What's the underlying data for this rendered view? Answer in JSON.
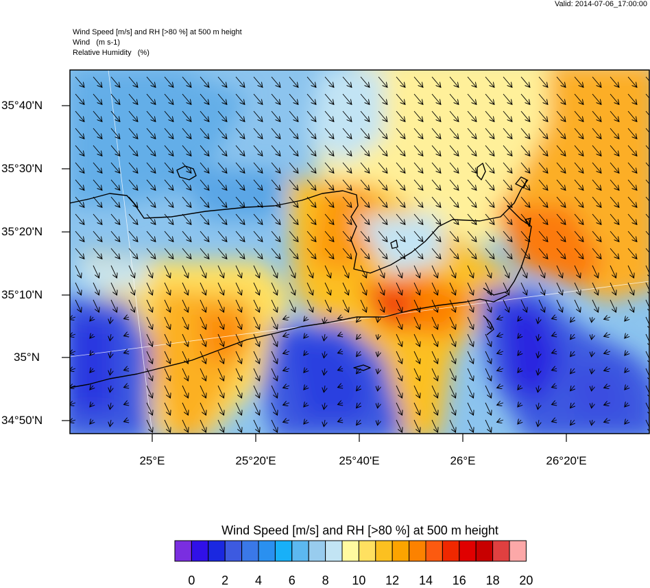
{
  "valid_label": "Valid: 2014-07-06_17:00:00",
  "header_lines": [
    "Wind Speed [m/s] and RH [>80 %] at 500 m height",
    "Wind   (m s-1)",
    "Relative Humidity   (%)"
  ],
  "lat_labels": [
    "35°40'N",
    "35°30'N",
    "35°20'N",
    "35°10'N",
    "35°N",
    "34°50'N"
  ],
  "lon_labels": [
    "25°E",
    "25°20'E",
    "25°40'E",
    "26°E",
    "26°20'E"
  ],
  "colorbar": {
    "title": "Wind Speed [m/s] and RH [>80 %] at 500 m height",
    "tick_labels": [
      "0",
      "2",
      "4",
      "6",
      "8",
      "10",
      "12",
      "14",
      "16",
      "18",
      "20"
    ],
    "colors": [
      "#7a2ee0",
      "#3010e8",
      "#1a28e0",
      "#3d5ae0",
      "#3a78e8",
      "#2a90f0",
      "#18b0f8",
      "#5cb8f0",
      "#98ccee",
      "#c2e4f4",
      "#fffaa0",
      "#ffe060",
      "#fcc020",
      "#fca400",
      "#fc8200",
      "#fc5a10",
      "#f02800",
      "#e00000",
      "#c80000",
      "#e04040",
      "#fca8a8"
    ]
  }
}
